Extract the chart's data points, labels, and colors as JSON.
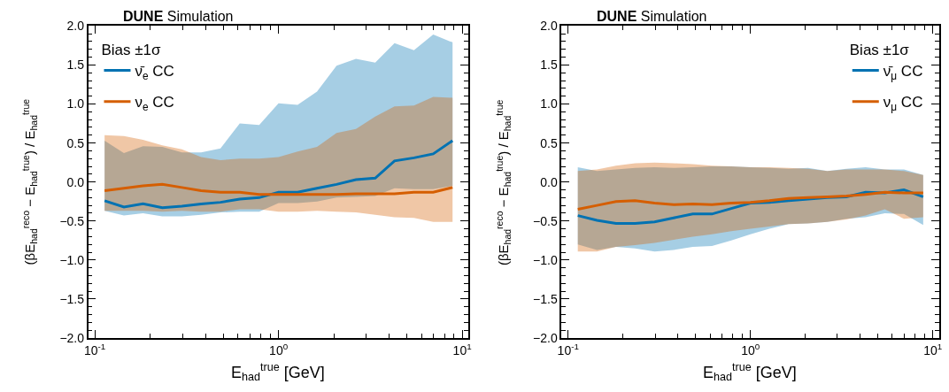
{
  "chart_data": [
    {
      "type": "line",
      "title": "DUNE Simulation",
      "xlabel": "E$_{had}$$^{true}$ [GeV]",
      "ylabel": "(βE$_{had}$$^{reco}$ − E$_{had}$$^{true}$) / E$_{had}$$^{true}$",
      "legend_title": "Bias ±1σ",
      "legend": "top left",
      "log": "x",
      "grid": false,
      "marker": "none",
      "line_style": "solid",
      "x": [
        0.113,
        0.144,
        0.183,
        0.233,
        0.298,
        0.379,
        0.483,
        0.615,
        0.785,
        1.0,
        1.27,
        1.62,
        2.07,
        2.64,
        3.36,
        4.28,
        5.46,
        6.95,
        8.86
      ],
      "xlim": [
        0.092,
        10.8
      ],
      "xticks": [
        {
          "value": 0.1,
          "label": "10$^{-1}$"
        },
        {
          "value": 1,
          "label": "10$^{0}$"
        },
        {
          "value": 10,
          "label": "10$^{1}$"
        }
      ],
      "ylim": [
        -2.0,
        2.0
      ],
      "yticks": [
        {
          "value": -2.0,
          "label": "−2.0"
        },
        {
          "value": -1.5,
          "label": "−1.5"
        },
        {
          "value": -1.0,
          "label": "−1.0"
        },
        {
          "value": -0.5,
          "label": "−0.5"
        },
        {
          "value": 0.0,
          "label": "0.0"
        },
        {
          "value": 0.5,
          "label": "0.5"
        },
        {
          "value": 1.0,
          "label": "1.0"
        },
        {
          "value": 1.5,
          "label": "1.5"
        },
        {
          "value": 2.0,
          "label": "2.0"
        }
      ],
      "series": [
        {
          "name": "ν̄$_{e}$ CC",
          "color": "#0072b2",
          "values": [
            -0.24,
            -0.32,
            -0.28,
            -0.33,
            -0.31,
            -0.28,
            -0.26,
            -0.22,
            -0.2,
            -0.13,
            -0.13,
            -0.08,
            -0.03,
            0.03,
            0.05,
            0.27,
            0.31,
            0.36,
            0.53
          ],
          "lower": [
            -0.37,
            -0.43,
            -0.4,
            -0.44,
            -0.44,
            -0.42,
            -0.39,
            -0.38,
            -0.38,
            -0.27,
            -0.27,
            -0.25,
            -0.2,
            -0.19,
            -0.18,
            -0.08,
            -0.09,
            -0.09,
            -0.05
          ],
          "upper": [
            0.53,
            0.37,
            0.46,
            0.45,
            0.38,
            0.38,
            0.43,
            0.75,
            0.73,
            1.01,
            0.99,
            1.16,
            1.49,
            1.58,
            1.53,
            1.78,
            1.69,
            1.89,
            1.79
          ]
        },
        {
          "name": "ν$_{e}$ CC",
          "color": "#d55e00",
          "values": [
            -0.11,
            -0.08,
            -0.05,
            -0.03,
            -0.07,
            -0.11,
            -0.13,
            -0.13,
            -0.16,
            -0.16,
            -0.16,
            -0.16,
            -0.16,
            -0.15,
            -0.15,
            -0.15,
            -0.13,
            -0.13,
            -0.07
          ],
          "lower": [
            -0.37,
            -0.37,
            -0.37,
            -0.38,
            -0.37,
            -0.38,
            -0.38,
            -0.35,
            -0.35,
            -0.38,
            -0.38,
            -0.37,
            -0.38,
            -0.39,
            -0.42,
            -0.45,
            -0.46,
            -0.51,
            -0.51
          ],
          "upper": [
            0.6,
            0.59,
            0.54,
            0.47,
            0.42,
            0.32,
            0.28,
            0.3,
            0.3,
            0.32,
            0.39,
            0.45,
            0.63,
            0.68,
            0.84,
            0.97,
            0.98,
            1.09,
            1.08
          ]
        }
      ]
    },
    {
      "type": "line",
      "title": "DUNE Simulation",
      "xlabel": "E$_{had}$$^{true}$ [GeV]",
      "ylabel": "(βE$_{had}$$^{reco}$ − E$_{had}$$^{true}$) / E$_{had}$$^{true}$",
      "legend_title": "Bias ±1σ",
      "legend": "top right",
      "log": "x",
      "grid": false,
      "marker": "none",
      "line_style": "solid",
      "x": [
        0.113,
        0.144,
        0.183,
        0.233,
        0.298,
        0.379,
        0.483,
        0.615,
        0.785,
        1.0,
        1.27,
        1.62,
        2.07,
        2.64,
        3.36,
        4.28,
        5.46,
        6.95,
        8.86
      ],
      "xlim": [
        0.092,
        10.8
      ],
      "xticks": [
        {
          "value": 0.1,
          "label": "10$^{-1}$"
        },
        {
          "value": 1,
          "label": "10$^{0}$"
        },
        {
          "value": 10,
          "label": "10$^{1}$"
        }
      ],
      "ylim": [
        -2.0,
        2.0
      ],
      "yticks": [
        {
          "value": -2.0,
          "label": "−2.0"
        },
        {
          "value": -1.5,
          "label": "−1.5"
        },
        {
          "value": -1.0,
          "label": "−1.0"
        },
        {
          "value": -0.5,
          "label": "−0.5"
        },
        {
          "value": 0.0,
          "label": "0.0"
        },
        {
          "value": 0.5,
          "label": "0.5"
        },
        {
          "value": 1.0,
          "label": "1.0"
        },
        {
          "value": 1.5,
          "label": "1.5"
        },
        {
          "value": 2.0,
          "label": "2.0"
        }
      ],
      "series": [
        {
          "name": "ν̄$_{μ}$ CC",
          "color": "#0072b2",
          "values": [
            -0.43,
            -0.49,
            -0.53,
            -0.53,
            -0.51,
            -0.46,
            -0.41,
            -0.41,
            -0.34,
            -0.27,
            -0.26,
            -0.24,
            -0.22,
            -0.2,
            -0.19,
            -0.13,
            -0.14,
            -0.1,
            -0.19
          ],
          "lower": [
            -0.8,
            -0.87,
            -0.83,
            -0.85,
            -0.89,
            -0.87,
            -0.83,
            -0.82,
            -0.75,
            -0.67,
            -0.6,
            -0.54,
            -0.53,
            -0.51,
            -0.47,
            -0.45,
            -0.4,
            -0.41,
            -0.55
          ],
          "upper": [
            0.19,
            0.14,
            0.16,
            0.18,
            0.19,
            0.18,
            0.19,
            0.2,
            0.2,
            0.19,
            0.18,
            0.17,
            0.18,
            0.14,
            0.17,
            0.19,
            0.16,
            0.16,
            0.09
          ]
        },
        {
          "name": "ν$_{μ}$ CC",
          "color": "#d55e00",
          "values": [
            -0.35,
            -0.3,
            -0.25,
            -0.24,
            -0.27,
            -0.29,
            -0.28,
            -0.29,
            -0.27,
            -0.26,
            -0.24,
            -0.21,
            -0.2,
            -0.19,
            -0.18,
            -0.16,
            -0.13,
            -0.14,
            -0.14
          ],
          "lower": [
            -0.89,
            -0.89,
            -0.83,
            -0.81,
            -0.78,
            -0.74,
            -0.7,
            -0.67,
            -0.63,
            -0.6,
            -0.57,
            -0.54,
            -0.53,
            -0.51,
            -0.48,
            -0.43,
            -0.35,
            -0.47,
            -0.45
          ],
          "upper": [
            0.14,
            0.16,
            0.21,
            0.24,
            0.25,
            0.24,
            0.23,
            0.21,
            0.2,
            0.19,
            0.19,
            0.18,
            0.17,
            0.14,
            0.16,
            0.16,
            0.16,
            0.14,
            0.09
          ]
        }
      ]
    }
  ]
}
